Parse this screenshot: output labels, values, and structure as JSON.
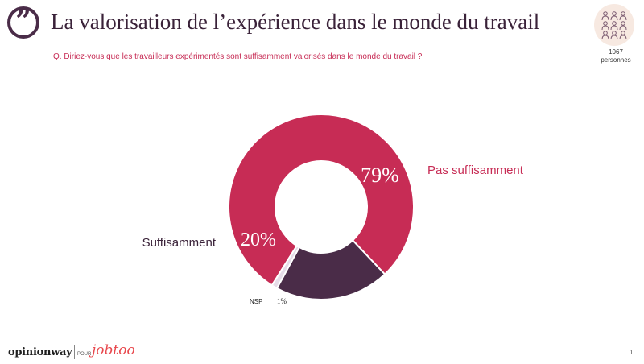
{
  "header": {
    "title": "La valorisation de l’expérience dans le monde du travail",
    "question": "Q. Diriez-vous que les travailleurs expérimentés sont suffisamment valorisés dans le monde du travail ?",
    "sample_count": "1067",
    "sample_unit": "personnes"
  },
  "chart_data": {
    "type": "pie",
    "donut": true,
    "categories": [
      "Pas suffisamment",
      "Suffisamment",
      "NSP"
    ],
    "values": [
      79,
      20,
      1
    ],
    "value_labels": [
      "79%",
      "20%",
      "1%"
    ],
    "colors": [
      "#c72c55",
      "#4a2c48",
      "#e6dce8"
    ]
  },
  "footer": {
    "brand": "opinionway",
    "pour": "POUR",
    "partner": "jobtoo",
    "page": "1"
  },
  "colors": {
    "accent": "#c72c55",
    "dark": "#4a2c48"
  },
  "icons": {
    "quote": "quote-marks-icon",
    "people": "people-group-icon"
  }
}
